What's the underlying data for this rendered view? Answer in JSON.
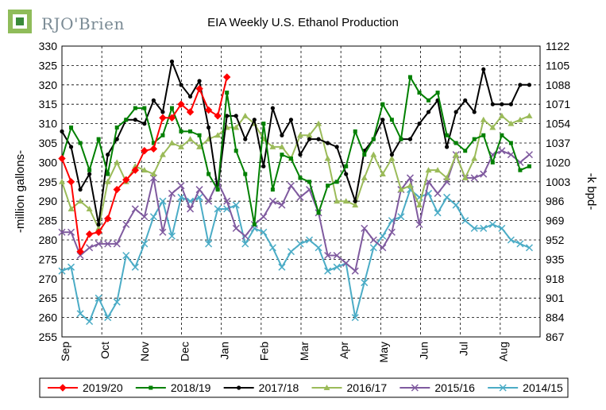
{
  "header": {
    "logo_text": "RJO'Brien",
    "brand_color": "#3a8a3a"
  },
  "chart_data": {
    "type": "line",
    "title": "EIA Weekly U.S. Ethanol Production",
    "ylabel": "-million gallons-",
    "y2label": "-k bpd-",
    "ylim": [
      255,
      330
    ],
    "y2lim": [
      867,
      1122
    ],
    "yticks": [
      255,
      260,
      265,
      270,
      275,
      280,
      285,
      290,
      295,
      300,
      305,
      310,
      315,
      320,
      325,
      330
    ],
    "y2ticks": [
      867,
      884,
      901,
      918,
      935,
      952,
      969,
      986,
      1003,
      1020,
      1037,
      1054,
      1071,
      1088,
      1105,
      1122
    ],
    "x_months": [
      "Sep",
      "Oct",
      "Nov",
      "Dec",
      "Jan",
      "Feb",
      "Mar",
      "Apr",
      "May",
      "Jun",
      "Jul",
      "Aug"
    ],
    "x_range": [
      0,
      12
    ],
    "grid": true,
    "legend_position": "bottom",
    "series": [
      {
        "name": "2019/20",
        "color": "#ff0000",
        "marker": "diamond",
        "x": [
          0.0,
          0.23,
          0.46,
          0.69,
          0.92,
          1.15,
          1.38,
          1.61,
          1.84,
          2.07,
          2.3,
          2.53,
          2.76,
          2.99,
          3.22,
          3.45,
          3.68,
          3.91,
          4.14
        ],
        "y": [
          301,
          295,
          277,
          281.5,
          282,
          285.5,
          293,
          295.5,
          298,
          303,
          303.5,
          311.5,
          311.5,
          315,
          313,
          319,
          313.5,
          312,
          322
        ]
      },
      {
        "name": "2018/19",
        "color": "#008000",
        "marker": "square",
        "x": [
          0.0,
          0.23,
          0.46,
          0.69,
          0.92,
          1.15,
          1.38,
          1.61,
          1.84,
          2.07,
          2.3,
          2.53,
          2.76,
          2.99,
          3.22,
          3.45,
          3.68,
          3.91,
          4.14,
          4.37,
          4.6,
          4.83,
          5.06,
          5.29,
          5.52,
          5.75,
          5.98,
          6.21,
          6.44,
          6.67,
          6.9,
          7.13,
          7.36,
          7.59,
          7.82,
          8.05,
          8.28,
          8.51,
          8.74,
          8.97,
          9.2,
          9.43,
          9.66,
          9.89,
          10.12,
          10.35,
          10.58,
          10.81,
          11.04,
          11.27,
          11.5,
          11.73
        ],
        "y": [
          301,
          309,
          305,
          298,
          306,
          297,
          309,
          311,
          314,
          314,
          305,
          307,
          314,
          308,
          308,
          307,
          297,
          293,
          318,
          303,
          297,
          284,
          310,
          293,
          302,
          301,
          296,
          295,
          287,
          294,
          295,
          299,
          308,
          302,
          306,
          315,
          311,
          306,
          322,
          318,
          316,
          318,
          307,
          305,
          303,
          306,
          307,
          300,
          307,
          305,
          298,
          299
        ]
      },
      {
        "name": "2017/18",
        "color": "#000000",
        "marker": "circle",
        "x": [
          0.0,
          0.23,
          0.46,
          0.69,
          0.92,
          1.15,
          1.38,
          1.61,
          1.84,
          2.07,
          2.3,
          2.53,
          2.76,
          2.99,
          3.22,
          3.45,
          3.68,
          3.91,
          4.14,
          4.37,
          4.6,
          4.83,
          5.06,
          5.29,
          5.52,
          5.75,
          5.98,
          6.21,
          6.44,
          6.67,
          6.9,
          7.13,
          7.36,
          7.59,
          7.82,
          8.05,
          8.28,
          8.51,
          8.74,
          8.97,
          9.2,
          9.43,
          9.66,
          9.89,
          10.12,
          10.35,
          10.58,
          10.81,
          11.04,
          11.27,
          11.5,
          11.73
        ],
        "y": [
          308,
          304,
          293,
          297,
          284,
          302,
          306,
          311,
          311,
          310,
          316,
          313,
          326,
          320,
          317,
          321,
          309,
          293,
          312,
          312,
          306,
          311,
          299,
          314,
          307,
          311,
          302,
          306,
          306,
          305,
          304,
          297,
          290,
          303,
          306,
          311,
          302,
          306,
          306,
          310,
          313,
          316,
          304,
          313,
          316,
          313,
          324,
          315,
          315,
          315,
          320,
          320
        ]
      },
      {
        "name": "2016/17",
        "color": "#9bbb59",
        "marker": "triangle",
        "x": [
          0.0,
          0.23,
          0.46,
          0.69,
          0.92,
          1.15,
          1.38,
          1.61,
          1.84,
          2.07,
          2.3,
          2.53,
          2.76,
          2.99,
          3.22,
          3.45,
          3.68,
          3.91,
          4.14,
          4.37,
          4.6,
          4.83,
          5.06,
          5.29,
          5.52,
          5.75,
          5.98,
          6.21,
          6.44,
          6.67,
          6.9,
          7.13,
          7.36,
          7.59,
          7.82,
          8.05,
          8.28,
          8.51,
          8.74,
          8.97,
          9.2,
          9.43,
          9.66,
          9.89,
          10.12,
          10.35,
          10.58,
          10.81,
          11.04,
          11.27,
          11.5,
          11.73
        ],
        "y": [
          295,
          288,
          290,
          288,
          283,
          295,
          300,
          295,
          299,
          298,
          297,
          302,
          305,
          304,
          306,
          304,
          306,
          307,
          309,
          309,
          312,
          310,
          306,
          304,
          304,
          301,
          307,
          307,
          310,
          301,
          290,
          290,
          289,
          296,
          302,
          297,
          301,
          293,
          294,
          289,
          298,
          298,
          296,
          302,
          296,
          301,
          311,
          309,
          312,
          310,
          311,
          312
        ]
      },
      {
        "name": "2015/16",
        "color": "#7f5a9f",
        "marker": "x",
        "x": [
          0.0,
          0.23,
          0.46,
          0.69,
          0.92,
          1.15,
          1.38,
          1.61,
          1.84,
          2.07,
          2.3,
          2.53,
          2.76,
          2.99,
          3.22,
          3.45,
          3.68,
          3.91,
          4.14,
          4.37,
          4.6,
          4.83,
          5.06,
          5.29,
          5.52,
          5.75,
          5.98,
          6.21,
          6.44,
          6.67,
          6.9,
          7.13,
          7.36,
          7.59,
          7.82,
          8.05,
          8.28,
          8.51,
          8.74,
          8.97,
          9.2,
          9.43,
          9.66,
          9.89,
          10.12,
          10.35,
          10.58,
          10.81,
          11.04,
          11.27,
          11.5,
          11.73
        ],
        "y": [
          282,
          282,
          276,
          278,
          279,
          279,
          279,
          284,
          288,
          286,
          296,
          282,
          292,
          294,
          288,
          293,
          290,
          295,
          290,
          283,
          281,
          284,
          286,
          290,
          289,
          294,
          291,
          293,
          287,
          276,
          276,
          274,
          272,
          283,
          280,
          278,
          282,
          293,
          296,
          284,
          295,
          292,
          295,
          302,
          296,
          296,
          297,
          302,
          303,
          302,
          300,
          302
        ]
      },
      {
        "name": "2014/15",
        "color": "#4bacc6",
        "marker": "x",
        "x": [
          0.0,
          0.23,
          0.46,
          0.69,
          0.92,
          1.15,
          1.38,
          1.61,
          1.84,
          2.07,
          2.3,
          2.53,
          2.76,
          2.99,
          3.22,
          3.45,
          3.68,
          3.91,
          4.14,
          4.37,
          4.6,
          4.83,
          5.06,
          5.29,
          5.52,
          5.75,
          5.98,
          6.21,
          6.44,
          6.67,
          6.9,
          7.13,
          7.36,
          7.59,
          7.82,
          8.05,
          8.28,
          8.51,
          8.74,
          8.97,
          9.2,
          9.43,
          9.66,
          9.89,
          10.12,
          10.35,
          10.58,
          10.81,
          11.04,
          11.27,
          11.5,
          11.73
        ],
        "y": [
          272,
          273,
          261,
          259,
          265,
          260,
          264,
          276,
          273,
          279,
          286,
          290,
          281,
          291,
          290,
          291,
          279,
          288,
          288,
          289,
          279,
          283,
          282,
          278,
          273,
          277,
          279,
          280,
          278,
          272,
          273,
          274,
          260,
          269,
          278,
          281,
          285,
          286,
          293,
          291,
          292,
          287,
          291,
          289,
          285,
          283,
          283,
          284,
          283,
          280,
          279,
          278
        ]
      }
    ]
  }
}
